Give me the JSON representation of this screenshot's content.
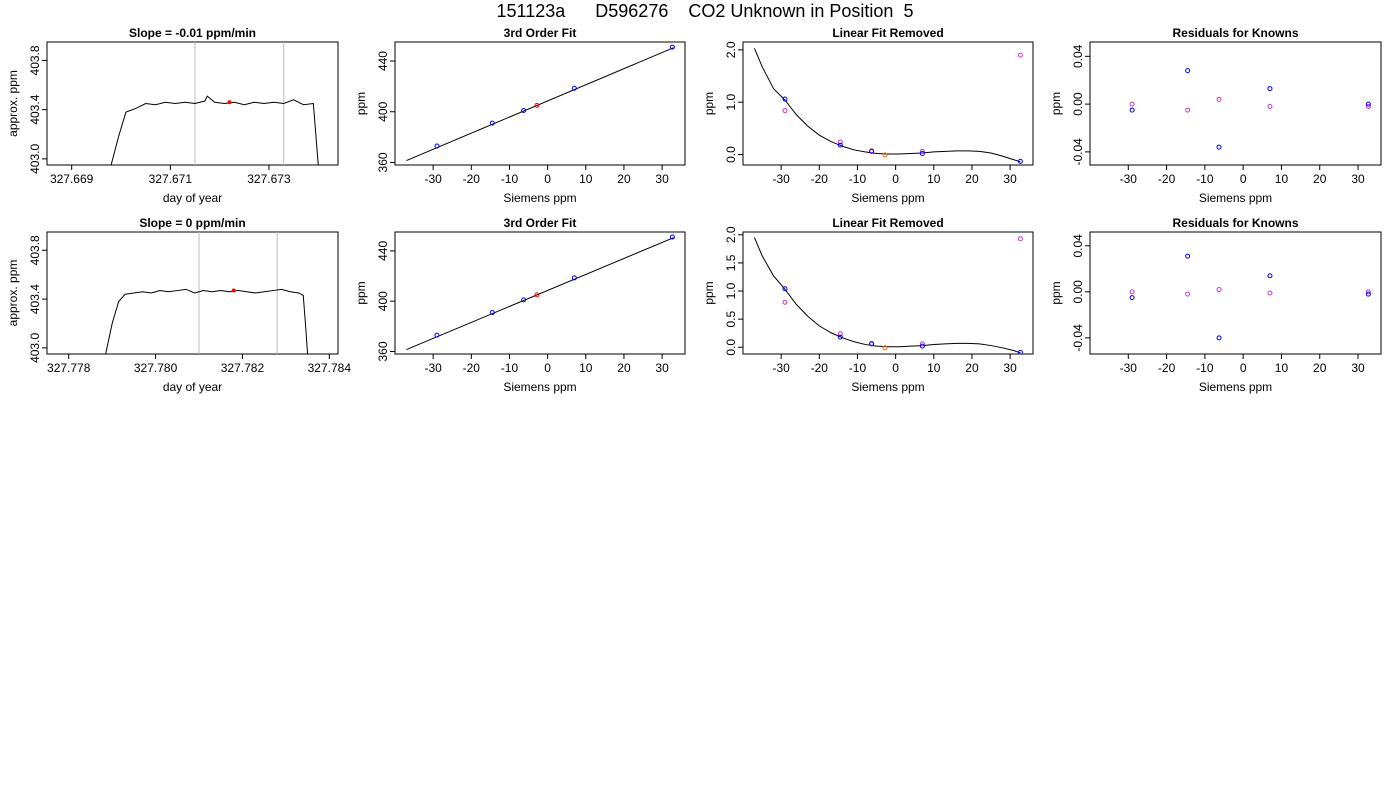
{
  "header": {
    "title": "151123a      D596276    CO2 Unknown in Position  5"
  },
  "colors": {
    "known": "#0000ff",
    "unknown": "#ff0000",
    "residual_alt": "#cc33cc",
    "fit_line": "#000000",
    "marker": "#bbbbbb",
    "orange": "#ff6600"
  },
  "chart_data": [
    {
      "type": "line",
      "title": "Slope =  -0.01  ppm/min",
      "xlabel": "day of year",
      "ylabel": "approx. ppm",
      "xlim": [
        327.6685,
        327.6744
      ],
      "ylim": [
        402.95,
        403.95
      ],
      "xticks": [
        {
          "v": 327.669,
          "label": "327.669"
        },
        {
          "v": 327.671,
          "label": "327.671"
        },
        {
          "v": 327.673,
          "label": "327.673"
        }
      ],
      "yticks": [
        {
          "v": 403.0,
          "label": "403.0"
        },
        {
          "v": 403.4,
          "label": "403.4"
        },
        {
          "v": 403.8,
          "label": "403.8"
        }
      ],
      "vlines": [
        327.6715,
        327.6733
      ],
      "trace": [
        [
          327.6698,
          402.95
        ],
        [
          327.66995,
          403.18
        ],
        [
          327.6701,
          403.38
        ],
        [
          327.6703,
          403.41
        ],
        [
          327.6705,
          403.45
        ],
        [
          327.6707,
          403.44
        ],
        [
          327.6709,
          403.46
        ],
        [
          327.6711,
          403.45
        ],
        [
          327.6713,
          403.46
        ],
        [
          327.6715,
          403.45
        ],
        [
          327.6717,
          403.47
        ],
        [
          327.67175,
          403.51
        ],
        [
          327.6719,
          403.46
        ],
        [
          327.6721,
          403.45
        ],
        [
          327.6723,
          403.46
        ],
        [
          327.6725,
          403.44
        ],
        [
          327.6727,
          403.46
        ],
        [
          327.6729,
          403.45
        ],
        [
          327.6731,
          403.46
        ],
        [
          327.6733,
          403.45
        ],
        [
          327.6735,
          403.48
        ],
        [
          327.6737,
          403.44
        ],
        [
          327.6739,
          403.45
        ],
        [
          327.67395,
          403.2
        ],
        [
          327.674,
          402.95
        ]
      ],
      "marker": [
        327.6722,
        403.46
      ]
    },
    {
      "type": "scatter",
      "title": "3rd Order Fit",
      "xlabel": "Siemens ppm",
      "ylabel": "ppm",
      "xlim": [
        -40,
        36
      ],
      "ylim": [
        358,
        455
      ],
      "xticks": [
        {
          "v": -30,
          "label": "-30"
        },
        {
          "v": -20,
          "label": "-20"
        },
        {
          "v": -10,
          "label": "-10"
        },
        {
          "v": 0,
          "label": "0"
        },
        {
          "v": 10,
          "label": "10"
        },
        {
          "v": 20,
          "label": "20"
        },
        {
          "v": 30,
          "label": "30"
        }
      ],
      "yticks": [
        {
          "v": 360,
          "label": "360"
        },
        {
          "v": 400,
          "label": "400"
        },
        {
          "v": 440,
          "label": "440"
        }
      ],
      "fit_line": [
        [
          -37,
          361.5
        ],
        [
          33,
          450.5
        ]
      ],
      "knowns": [
        [
          -29,
          373
        ],
        [
          -14.5,
          391
        ],
        [
          -6.3,
          401
        ],
        [
          7,
          418.5
        ],
        [
          32.7,
          451
        ]
      ],
      "unknown": [
        -2.8,
        405
      ]
    },
    {
      "type": "scatter",
      "title": "Linear Fit Removed",
      "xlabel": "Siemens ppm",
      "ylabel": "ppm",
      "xlim": [
        -40,
        36
      ],
      "ylim": [
        -0.2,
        2.15
      ],
      "xticks": [
        {
          "v": -30,
          "label": "-30"
        },
        {
          "v": -20,
          "label": "-20"
        },
        {
          "v": -10,
          "label": "-10"
        },
        {
          "v": 0,
          "label": "0"
        },
        {
          "v": 10,
          "label": "10"
        },
        {
          "v": 20,
          "label": "20"
        },
        {
          "v": 30,
          "label": "30"
        }
      ],
      "yticks": [
        {
          "v": 0.0,
          "label": "0.0"
        },
        {
          "v": 1.0,
          "label": "1.0"
        },
        {
          "v": 2.0,
          "label": "2.0"
        }
      ],
      "curve": [
        [
          -37,
          2.03
        ],
        [
          -35,
          1.68
        ],
        [
          -32,
          1.26
        ],
        [
          -29,
          1.04
        ],
        [
          -26,
          0.76
        ],
        [
          -23,
          0.54
        ],
        [
          -20,
          0.37
        ],
        [
          -17,
          0.25
        ],
        [
          -14,
          0.16
        ],
        [
          -11,
          0.09
        ],
        [
          -8,
          0.05
        ],
        [
          -5,
          0.02
        ],
        [
          -2,
          0.01
        ],
        [
          1,
          0.01
        ],
        [
          4,
          0.02
        ],
        [
          7,
          0.03
        ],
        [
          10,
          0.05
        ],
        [
          13,
          0.06
        ],
        [
          16,
          0.07
        ],
        [
          19,
          0.07
        ],
        [
          22,
          0.06
        ],
        [
          25,
          0.03
        ],
        [
          28,
          -0.03
        ],
        [
          31,
          -0.1
        ],
        [
          32.7,
          -0.14
        ]
      ],
      "knowns": [
        [
          -29,
          1.06
        ],
        [
          -14.5,
          0.18
        ],
        [
          -6.3,
          0.06
        ],
        [
          7,
          0.02
        ],
        [
          32.7,
          -0.13
        ]
      ],
      "alt": [
        [
          -29,
          0.84
        ],
        [
          -14.5,
          0.24
        ],
        [
          -6.3,
          0.07
        ],
        [
          7,
          0.06
        ],
        [
          32.7,
          1.9
        ]
      ],
      "unknown": [
        -2.8,
        -0.01
      ]
    },
    {
      "type": "scatter",
      "title": "Residuals for Knowns",
      "xlabel": "Siemens ppm",
      "ylabel": "ppm",
      "xlim": [
        -40,
        36
      ],
      "ylim": [
        -0.051,
        0.052
      ],
      "xticks": [
        {
          "v": -30,
          "label": "-30"
        },
        {
          "v": -20,
          "label": "-20"
        },
        {
          "v": -10,
          "label": "-10"
        },
        {
          "v": 0,
          "label": "0"
        },
        {
          "v": 10,
          "label": "10"
        },
        {
          "v": 20,
          "label": "20"
        },
        {
          "v": 30,
          "label": "30"
        }
      ],
      "yticks": [
        {
          "v": -0.04,
          "label": "-0.04"
        },
        {
          "v": 0.0,
          "label": "0.00"
        },
        {
          "v": 0.04,
          "label": "0.04"
        }
      ],
      "knowns": [
        [
          -29,
          -0.005
        ],
        [
          -14.5,
          0.028
        ],
        [
          -6.3,
          -0.036
        ],
        [
          7,
          0.013
        ],
        [
          32.7,
          0.0
        ]
      ],
      "alt": [
        [
          -29,
          0.0
        ],
        [
          -14.5,
          -0.005
        ],
        [
          -6.3,
          0.004
        ],
        [
          7,
          -0.002
        ],
        [
          32.7,
          -0.002
        ]
      ]
    },
    {
      "type": "line",
      "title": "Slope =  0  ppm/min",
      "xlabel": "day of year",
      "ylabel": "approx. ppm",
      "xlim": [
        327.7775,
        327.7842
      ],
      "ylim": [
        402.95,
        403.95
      ],
      "xticks": [
        {
          "v": 327.778,
          "label": "327.778"
        },
        {
          "v": 327.78,
          "label": "327.780"
        },
        {
          "v": 327.782,
          "label": "327.782"
        },
        {
          "v": 327.784,
          "label": "327.784"
        }
      ],
      "yticks": [
        {
          "v": 403.0,
          "label": "403.0"
        },
        {
          "v": 403.4,
          "label": "403.4"
        },
        {
          "v": 403.8,
          "label": "403.8"
        }
      ],
      "vlines": [
        327.781,
        327.7828
      ],
      "trace": [
        [
          327.77885,
          402.95
        ],
        [
          327.779,
          403.2
        ],
        [
          327.77915,
          403.38
        ],
        [
          327.7793,
          403.44
        ],
        [
          327.7795,
          403.45
        ],
        [
          327.7797,
          403.46
        ],
        [
          327.7799,
          403.45
        ],
        [
          327.7801,
          403.47
        ],
        [
          327.7803,
          403.46
        ],
        [
          327.7805,
          403.47
        ],
        [
          327.7807,
          403.48
        ],
        [
          327.7809,
          403.45
        ],
        [
          327.7811,
          403.47
        ],
        [
          327.7813,
          403.46
        ],
        [
          327.7815,
          403.47
        ],
        [
          327.7817,
          403.46
        ],
        [
          327.7819,
          403.47
        ],
        [
          327.7821,
          403.46
        ],
        [
          327.7823,
          403.45
        ],
        [
          327.7825,
          403.46
        ],
        [
          327.7827,
          403.47
        ],
        [
          327.7829,
          403.48
        ],
        [
          327.7831,
          403.46
        ],
        [
          327.7833,
          403.45
        ],
        [
          327.7834,
          403.43
        ],
        [
          327.78345,
          403.2
        ],
        [
          327.7835,
          402.95
        ]
      ],
      "marker": [
        327.7818,
        403.47
      ]
    },
    {
      "type": "scatter",
      "title": "3rd Order Fit",
      "xlabel": "Siemens ppm",
      "ylabel": "ppm",
      "xlim": [
        -40,
        36
      ],
      "ylim": [
        358,
        455
      ],
      "xticks": [
        {
          "v": -30,
          "label": "-30"
        },
        {
          "v": -20,
          "label": "-20"
        },
        {
          "v": -10,
          "label": "-10"
        },
        {
          "v": 0,
          "label": "0"
        },
        {
          "v": 10,
          "label": "10"
        },
        {
          "v": 20,
          "label": "20"
        },
        {
          "v": 30,
          "label": "30"
        }
      ],
      "yticks": [
        {
          "v": 360,
          "label": "360"
        },
        {
          "v": 400,
          "label": "400"
        },
        {
          "v": 440,
          "label": "440"
        }
      ],
      "fit_line": [
        [
          -37,
          361.5
        ],
        [
          33,
          450.5
        ]
      ],
      "knowns": [
        [
          -29,
          373
        ],
        [
          -14.5,
          391
        ],
        [
          -6.3,
          401
        ],
        [
          7,
          418.5
        ],
        [
          32.7,
          451
        ]
      ],
      "unknown": [
        -2.8,
        405
      ]
    },
    {
      "type": "scatter",
      "title": "Linear Fit Removed",
      "xlabel": "Siemens ppm",
      "ylabel": "ppm",
      "xlim": [
        -40,
        36
      ],
      "ylim": [
        -0.12,
        2.05
      ],
      "xticks": [
        {
          "v": -30,
          "label": "-30"
        },
        {
          "v": -20,
          "label": "-20"
        },
        {
          "v": -10,
          "label": "-10"
        },
        {
          "v": 0,
          "label": "0"
        },
        {
          "v": 10,
          "label": "10"
        },
        {
          "v": 20,
          "label": "20"
        },
        {
          "v": 30,
          "label": "30"
        }
      ],
      "yticks": [
        {
          "v": 0.0,
          "label": "0.0"
        },
        {
          "v": 0.5,
          "label": "0.5"
        },
        {
          "v": 1.0,
          "label": "1.0"
        },
        {
          "v": 1.5,
          "label": "1.5"
        },
        {
          "v": 2.0,
          "label": "2.0"
        }
      ],
      "curve": [
        [
          -37,
          1.95
        ],
        [
          -35,
          1.63
        ],
        [
          -32,
          1.27
        ],
        [
          -29,
          1.03
        ],
        [
          -26,
          0.76
        ],
        [
          -23,
          0.55
        ],
        [
          -20,
          0.38
        ],
        [
          -17,
          0.26
        ],
        [
          -14,
          0.17
        ],
        [
          -11,
          0.1
        ],
        [
          -8,
          0.05
        ],
        [
          -5,
          0.02
        ],
        [
          -2,
          0.01
        ],
        [
          1,
          0.01
        ],
        [
          4,
          0.02
        ],
        [
          7,
          0.03
        ],
        [
          10,
          0.05
        ],
        [
          13,
          0.06
        ],
        [
          16,
          0.07
        ],
        [
          19,
          0.07
        ],
        [
          22,
          0.06
        ],
        [
          25,
          0.03
        ],
        [
          28,
          -0.01
        ],
        [
          31,
          -0.06
        ],
        [
          32.7,
          -0.1
        ]
      ],
      "knowns": [
        [
          -29,
          1.04
        ],
        [
          -14.5,
          0.18
        ],
        [
          -6.3,
          0.06
        ],
        [
          7,
          0.02
        ],
        [
          32.7,
          -0.09
        ]
      ],
      "alt": [
        [
          -29,
          0.8
        ],
        [
          -14.5,
          0.24
        ],
        [
          -6.3,
          0.07
        ],
        [
          7,
          0.06
        ],
        [
          32.7,
          1.93
        ]
      ],
      "unknown": [
        -2.8,
        -0.01
      ]
    },
    {
      "type": "scatter",
      "title": "Residuals for Knowns",
      "xlabel": "Siemens ppm",
      "ylabel": "ppm",
      "xlim": [
        -40,
        36
      ],
      "ylim": [
        -0.054,
        0.052
      ],
      "xticks": [
        {
          "v": -30,
          "label": "-30"
        },
        {
          "v": -20,
          "label": "-20"
        },
        {
          "v": -10,
          "label": "-10"
        },
        {
          "v": 0,
          "label": "0"
        },
        {
          "v": 10,
          "label": "10"
        },
        {
          "v": 20,
          "label": "20"
        },
        {
          "v": 30,
          "label": "30"
        }
      ],
      "yticks": [
        {
          "v": -0.04,
          "label": "-0.04"
        },
        {
          "v": 0.0,
          "label": "0.00"
        },
        {
          "v": 0.04,
          "label": "0.04"
        }
      ],
      "knowns": [
        [
          -29,
          -0.005
        ],
        [
          -14.5,
          0.031
        ],
        [
          -6.3,
          -0.04
        ],
        [
          7,
          0.014
        ],
        [
          32.7,
          -0.002
        ]
      ],
      "alt": [
        [
          -29,
          0.0
        ],
        [
          -14.5,
          -0.002
        ],
        [
          -6.3,
          0.002
        ],
        [
          7,
          -0.001
        ],
        [
          32.7,
          0.0
        ]
      ]
    }
  ]
}
